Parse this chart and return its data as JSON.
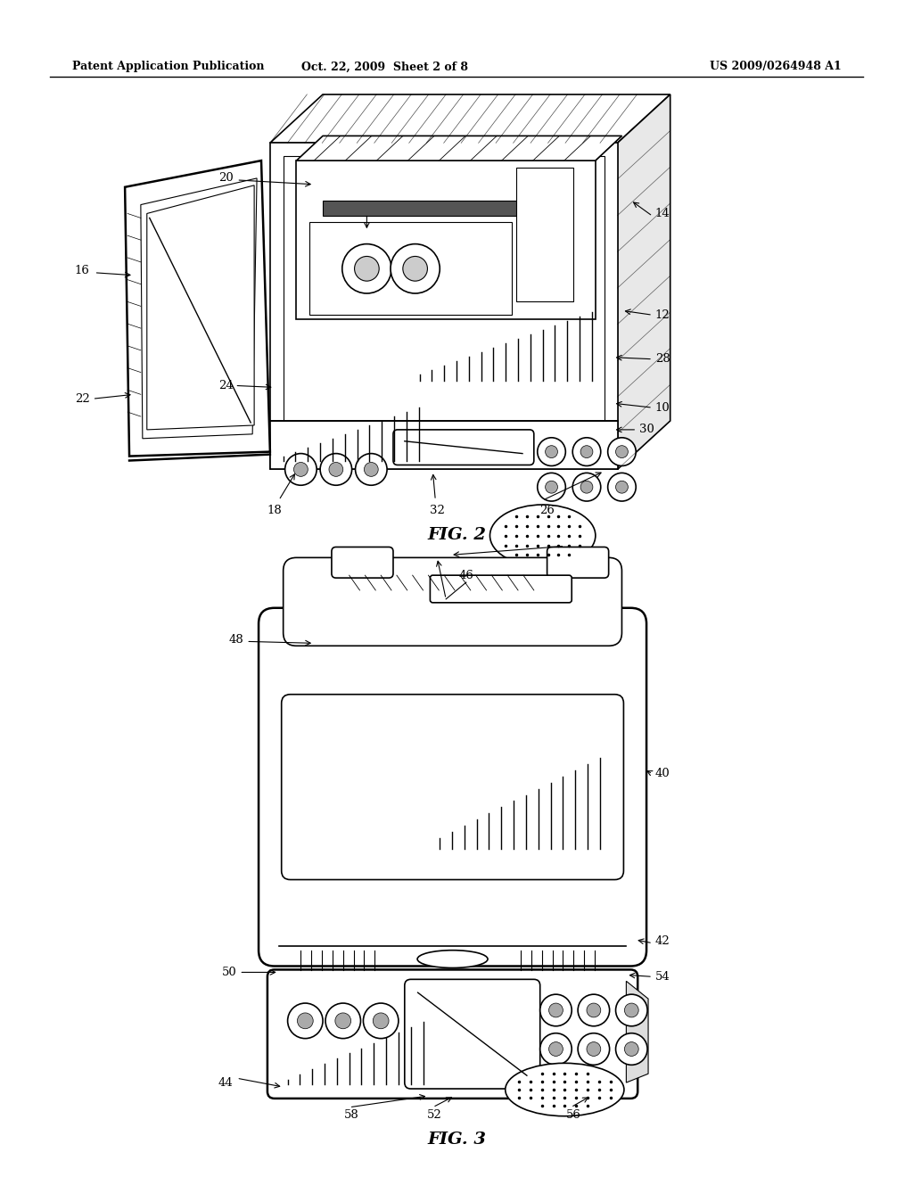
{
  "bg_color": "#ffffff",
  "lc": "#000000",
  "header_left": "Patent Application Publication",
  "header_mid": "Oct. 22, 2009  Sheet 2 of 8",
  "header_right": "US 2009/0264948 A1",
  "fig2_label": "FIG. 2",
  "fig3_label": "FIG. 3"
}
